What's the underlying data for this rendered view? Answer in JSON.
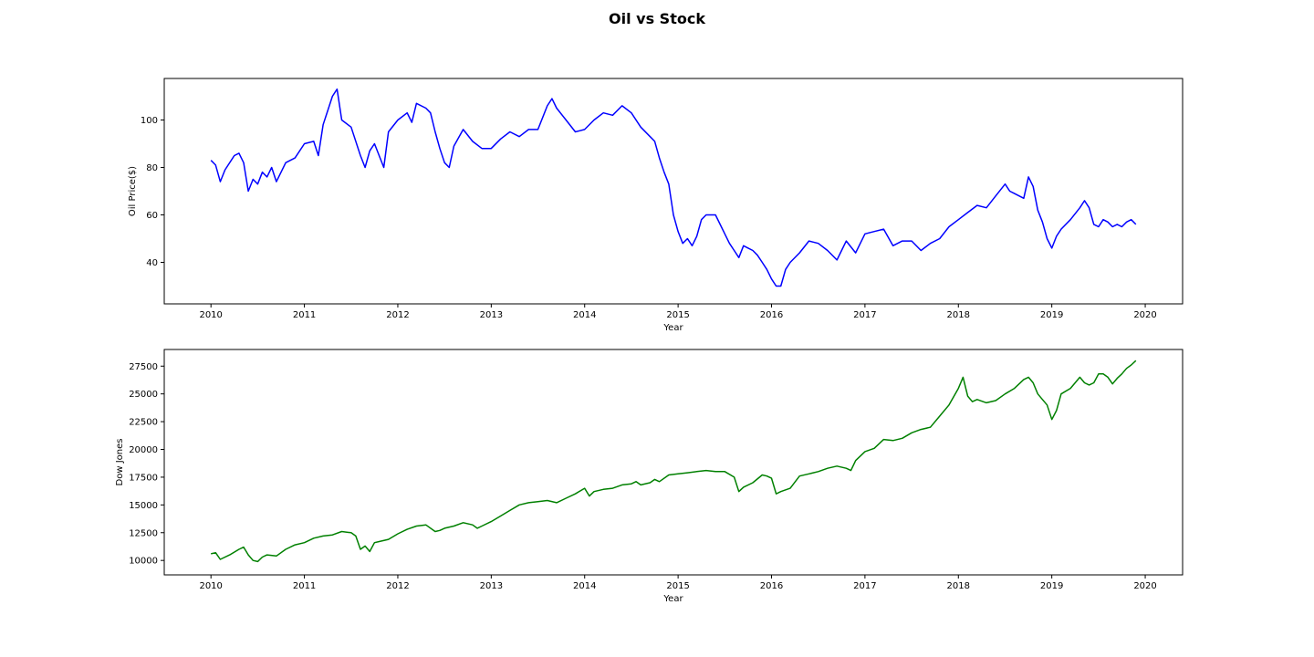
{
  "figure": {
    "title": "Oil vs Stock"
  },
  "chart_data": [
    {
      "type": "line",
      "xlabel": "Year",
      "ylabel": "Oil Price($)",
      "xlim": [
        2009.5,
        2020.4
      ],
      "ylim": [
        22.5,
        117.5
      ],
      "xticks": [
        2010,
        2011,
        2012,
        2013,
        2014,
        2015,
        2016,
        2017,
        2018,
        2019,
        2020
      ],
      "yticks": [
        40,
        60,
        80,
        100
      ],
      "grid": false,
      "series": [
        {
          "color": "#0000ff",
          "x": [
            2010.0,
            2010.05,
            2010.1,
            2010.15,
            2010.25,
            2010.3,
            2010.35,
            2010.4,
            2010.45,
            2010.5,
            2010.55,
            2010.6,
            2010.65,
            2010.7,
            2010.75,
            2010.8,
            2010.9,
            2011.0,
            2011.1,
            2011.15,
            2011.2,
            2011.25,
            2011.3,
            2011.35,
            2011.4,
            2011.5,
            2011.6,
            2011.65,
            2011.7,
            2011.75,
            2011.85,
            2011.9,
            2012.0,
            2012.1,
            2012.15,
            2012.2,
            2012.3,
            2012.35,
            2012.4,
            2012.45,
            2012.5,
            2012.55,
            2012.6,
            2012.7,
            2012.8,
            2012.9,
            2013.0,
            2013.1,
            2013.2,
            2013.3,
            2013.4,
            2013.5,
            2013.6,
            2013.65,
            2013.7,
            2013.8,
            2013.9,
            2014.0,
            2014.1,
            2014.2,
            2014.3,
            2014.4,
            2014.5,
            2014.6,
            2014.7,
            2014.75,
            2014.8,
            2014.85,
            2014.9,
            2014.95,
            2015.0,
            2015.05,
            2015.1,
            2015.15,
            2015.2,
            2015.25,
            2015.3,
            2015.4,
            2015.5,
            2015.55,
            2015.6,
            2015.65,
            2015.7,
            2015.75,
            2015.8,
            2015.85,
            2015.9,
            2015.95,
            2016.0,
            2016.05,
            2016.1,
            2016.15,
            2016.2,
            2016.3,
            2016.4,
            2016.5,
            2016.6,
            2016.7,
            2016.75,
            2016.8,
            2016.9,
            2017.0,
            2017.1,
            2017.2,
            2017.3,
            2017.4,
            2017.5,
            2017.6,
            2017.7,
            2017.8,
            2017.9,
            2018.0,
            2018.1,
            2018.2,
            2018.3,
            2018.4,
            2018.5,
            2018.55,
            2018.6,
            2018.7,
            2018.75,
            2018.8,
            2018.85,
            2018.9,
            2018.95,
            2019.0,
            2019.05,
            2019.1,
            2019.2,
            2019.3,
            2019.35,
            2019.4,
            2019.45,
            2019.5,
            2019.55,
            2019.6,
            2019.65,
            2019.7,
            2019.75,
            2019.8,
            2019.85,
            2019.9
          ],
          "y": [
            83,
            81,
            74,
            79,
            85,
            86,
            82,
            70,
            75,
            73,
            78,
            76,
            80,
            74,
            78,
            82,
            84,
            90,
            91,
            85,
            98,
            104,
            110,
            113,
            100,
            97,
            85,
            80,
            87,
            90,
            80,
            95,
            100,
            103,
            99,
            107,
            105,
            103,
            95,
            88,
            82,
            80,
            89,
            96,
            91,
            88,
            88,
            92,
            95,
            93,
            96,
            96,
            106,
            109,
            105,
            100,
            95,
            96,
            100,
            103,
            102,
            106,
            103,
            97,
            93,
            91,
            84,
            78,
            73,
            60,
            53,
            48,
            50,
            47,
            51,
            58,
            60,
            60,
            52,
            48,
            45,
            42,
            47,
            46,
            45,
            43,
            40,
            37,
            33,
            30,
            30,
            37,
            40,
            44,
            49,
            48,
            45,
            41,
            45,
            49,
            44,
            52,
            53,
            54,
            47,
            49,
            49,
            45,
            48,
            50,
            55,
            58,
            61,
            64,
            63,
            68,
            73,
            70,
            69,
            67,
            76,
            72,
            62,
            57,
            50,
            46,
            51,
            54,
            58,
            63,
            66,
            63,
            56,
            55,
            58,
            57,
            55,
            56,
            55,
            57,
            58,
            56
          ]
        }
      ]
    },
    {
      "type": "line",
      "xlabel": "Year",
      "ylabel": "Dow Jones",
      "xlim": [
        2009.5,
        2020.4
      ],
      "ylim": [
        8700,
        29000
      ],
      "xticks": [
        2010,
        2011,
        2012,
        2013,
        2014,
        2015,
        2016,
        2017,
        2018,
        2019,
        2020
      ],
      "yticks": [
        10000,
        12500,
        15000,
        17500,
        20000,
        22500,
        25000,
        27500
      ],
      "ytick_labels": [
        "10000",
        "12500",
        "15000",
        "17500",
        "20000",
        "22500",
        "25000",
        "27500"
      ],
      "grid": false,
      "series": [
        {
          "color": "#008000",
          "x": [
            2010.0,
            2010.05,
            2010.1,
            2010.2,
            2010.3,
            2010.35,
            2010.4,
            2010.45,
            2010.5,
            2010.55,
            2010.6,
            2010.7,
            2010.8,
            2010.9,
            2011.0,
            2011.1,
            2011.2,
            2011.3,
            2011.4,
            2011.5,
            2011.55,
            2011.6,
            2011.65,
            2011.7,
            2011.75,
            2011.8,
            2011.9,
            2012.0,
            2012.1,
            2012.2,
            2012.3,
            2012.4,
            2012.45,
            2012.5,
            2012.6,
            2012.7,
            2012.8,
            2012.85,
            2012.9,
            2013.0,
            2013.1,
            2013.2,
            2013.3,
            2013.4,
            2013.5,
            2013.6,
            2013.7,
            2013.8,
            2013.9,
            2014.0,
            2014.05,
            2014.1,
            2014.2,
            2014.3,
            2014.4,
            2014.5,
            2014.55,
            2014.6,
            2014.7,
            2014.75,
            2014.8,
            2014.9,
            2015.0,
            2015.1,
            2015.2,
            2015.3,
            2015.4,
            2015.5,
            2015.6,
            2015.65,
            2015.7,
            2015.8,
            2015.9,
            2015.95,
            2016.0,
            2016.05,
            2016.1,
            2016.2,
            2016.3,
            2016.4,
            2016.5,
            2016.6,
            2016.7,
            2016.8,
            2016.85,
            2016.9,
            2017.0,
            2017.1,
            2017.2,
            2017.3,
            2017.4,
            2017.5,
            2017.6,
            2017.7,
            2017.8,
            2017.9,
            2018.0,
            2018.05,
            2018.1,
            2018.15,
            2018.2,
            2018.3,
            2018.4,
            2018.5,
            2018.6,
            2018.7,
            2018.75,
            2018.8,
            2018.85,
            2018.9,
            2018.95,
            2019.0,
            2019.05,
            2019.1,
            2019.2,
            2019.3,
            2019.35,
            2019.4,
            2019.45,
            2019.5,
            2019.55,
            2019.6,
            2019.65,
            2019.7,
            2019.75,
            2019.8,
            2019.85,
            2019.9
          ],
          "y": [
            10600,
            10700,
            10100,
            10500,
            11000,
            11200,
            10500,
            10000,
            9900,
            10300,
            10500,
            10400,
            11000,
            11400,
            11600,
            12000,
            12200,
            12300,
            12600,
            12500,
            12200,
            11000,
            11300,
            10800,
            11600,
            11700,
            11900,
            12400,
            12800,
            13100,
            13200,
            12600,
            12700,
            12900,
            13100,
            13400,
            13200,
            12900,
            13100,
            13500,
            14000,
            14500,
            15000,
            15200,
            15300,
            15400,
            15200,
            15600,
            16000,
            16500,
            15800,
            16200,
            16400,
            16500,
            16800,
            16900,
            17100,
            16800,
            17000,
            17300,
            17100,
            17700,
            17800,
            17900,
            18000,
            18100,
            18000,
            18000,
            17500,
            16200,
            16600,
            17000,
            17700,
            17600,
            17400,
            16000,
            16200,
            16500,
            17600,
            17800,
            18000,
            18300,
            18500,
            18300,
            18100,
            19000,
            19800,
            20100,
            20900,
            20800,
            21000,
            21500,
            21800,
            22000,
            23000,
            24000,
            25500,
            26500,
            24800,
            24300,
            24500,
            24200,
            24400,
            25000,
            25500,
            26300,
            26500,
            26000,
            25000,
            24500,
            24000,
            22700,
            23500,
            25000,
            25500,
            26500,
            26000,
            25800,
            26000,
            26800,
            26800,
            26500,
            25900,
            26400,
            26800,
            27300,
            27600,
            28000
          ]
        }
      ]
    }
  ]
}
